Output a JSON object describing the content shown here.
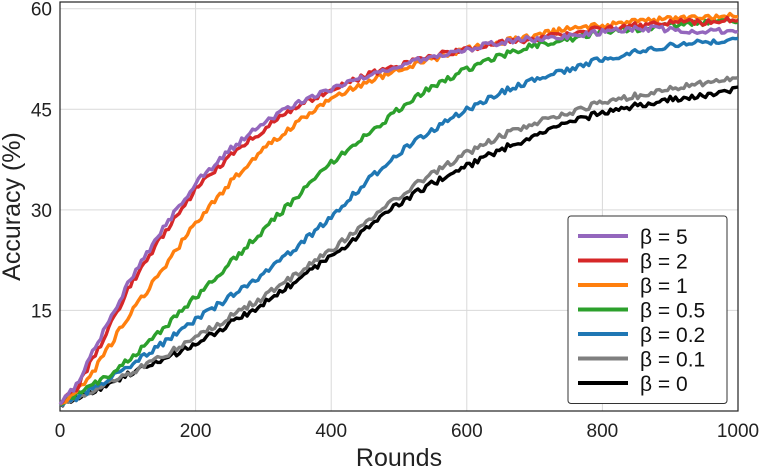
{
  "chart_data": {
    "type": "line",
    "xlabel": "Rounds",
    "ylabel": "Accuracy (%)",
    "xlim": [
      0,
      1000
    ],
    "ylim": [
      0,
      61
    ],
    "x_ticks": [
      0,
      200,
      400,
      600,
      800,
      1000
    ],
    "y_ticks": [
      15,
      30,
      45,
      60
    ],
    "grid": true,
    "legend_position": "bottom-right",
    "x": [
      0,
      25,
      50,
      75,
      100,
      150,
      200,
      250,
      300,
      350,
      400,
      450,
      500,
      550,
      600,
      650,
      700,
      750,
      800,
      850,
      900,
      950,
      1000
    ],
    "series": [
      {
        "name": "β = 5",
        "color": "#9467bd",
        "values": [
          1,
          4,
          9,
          14,
          19,
          27,
          34,
          39,
          43,
          46,
          48,
          50,
          51.5,
          53,
          54,
          55,
          55.5,
          56,
          56.5,
          57,
          57,
          56.5,
          57
        ]
      },
      {
        "name": "β = 2",
        "color": "#d62728",
        "values": [
          1,
          3.5,
          8,
          13,
          18,
          26,
          33,
          38,
          42,
          45.5,
          48,
          50,
          51.5,
          53,
          54,
          55,
          55.5,
          56.5,
          57,
          57.5,
          58,
          58,
          58.5
        ]
      },
      {
        "name": "β = 1",
        "color": "#ff7f0e",
        "values": [
          1,
          3,
          6,
          10,
          14,
          21,
          28,
          34,
          39,
          43,
          46.5,
          49,
          51,
          52.5,
          54,
          55,
          56,
          57,
          57.5,
          58,
          58.5,
          58.5,
          59
        ]
      },
      {
        "name": "β = 0.5",
        "color": "#2ca02c",
        "values": [
          1,
          2.5,
          4,
          5.5,
          7.5,
          12,
          17,
          22,
          27,
          32,
          37,
          41,
          45,
          48.5,
          51,
          53,
          54.5,
          55.5,
          56.5,
          57,
          57.5,
          58,
          58
        ]
      },
      {
        "name": "β = 0.2",
        "color": "#1f77b4",
        "values": [
          1,
          2,
          3.5,
          5,
          6.5,
          10,
          13.5,
          17,
          20.5,
          24.5,
          29,
          34,
          38.5,
          42,
          45,
          47.5,
          49.5,
          51,
          52.5,
          53.5,
          54.5,
          55,
          55.5
        ]
      },
      {
        "name": "β = 0.1",
        "color": "#7f7f7f",
        "values": [
          1,
          2,
          3,
          4.5,
          5.5,
          8,
          11,
          14,
          17,
          20.5,
          24,
          28,
          32,
          35.5,
          38.5,
          41,
          43,
          44.5,
          46,
          47,
          48,
          49,
          49.5
        ]
      },
      {
        "name": "β = 0",
        "color": "#000000",
        "values": [
          1,
          2,
          3,
          4,
          5.5,
          7.5,
          10,
          13,
          16,
          19.5,
          23,
          27,
          31,
          34,
          36.5,
          39,
          41,
          43,
          44.5,
          45.5,
          46.5,
          47,
          48
        ]
      }
    ]
  }
}
